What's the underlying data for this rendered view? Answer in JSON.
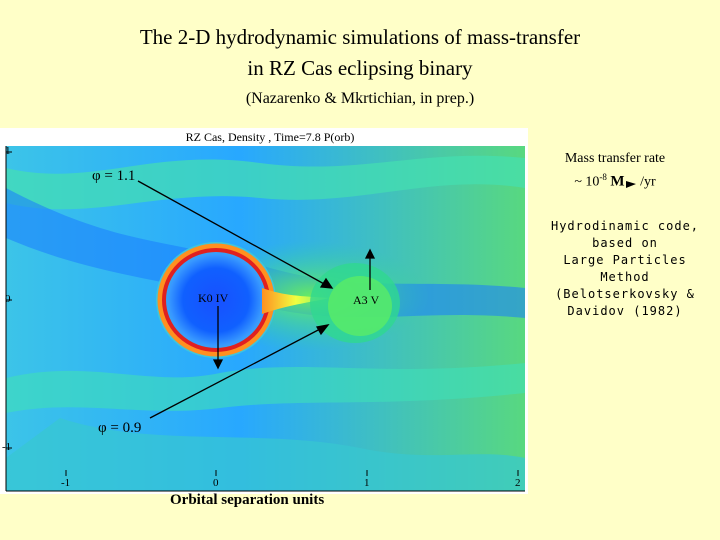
{
  "header": {
    "title": "The 2-D hydrodynamic simulations of mass-transfer\nin RZ Cas eclipsing binary",
    "subtitle": "(Nazarenko & Mkrtichian, in prep.)"
  },
  "figure": {
    "sim_title": "RZ Cas,  Density , Time=7.8 P(orb)",
    "y_ticks": [
      "1",
      "0",
      "-1"
    ],
    "x_ticks": [
      "-1",
      "0",
      "1",
      "2"
    ],
    "x_label": "Orbital separation units",
    "phi_upper": "φ = 1.1",
    "phi_lower": "φ = 0.9",
    "primary_label": "K0 IV",
    "secondary_label": "A3 V"
  },
  "annotations": {
    "rate_line1": "Mass transfer rate",
    "rate_prefix": "~ 10",
    "rate_exp": "-8",
    "rate_msun": "M",
    "rate_suffix": "/yr",
    "code_text": "Hydrodinamic code,\nbased on\nLarge Particles\nMethod\n(Belotserkovsky &\nDavidov (1982)"
  },
  "colors": {
    "background": "#ffffc8",
    "field_blue": "#0a3cff",
    "field_cyan": "#18c8e0",
    "field_green": "#3ce878",
    "ring_red": "#e02020",
    "ring_orange": "#ff8c10",
    "stream_yellow": "#f0ff40"
  }
}
